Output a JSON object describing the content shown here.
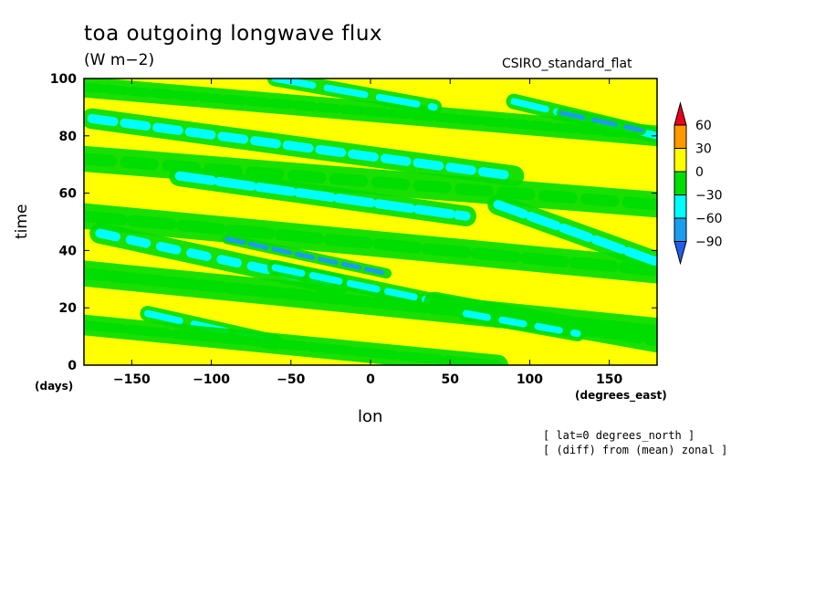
{
  "chart_data": {
    "type": "heatmap",
    "title": "toa outgoing longwave flux",
    "units": "(W m−2)",
    "model": "CSIRO_standard_flat",
    "xlabel": "lon",
    "ylabel": "time",
    "x_unit": "(degrees_east)",
    "y_unit": "(days)",
    "xlim": [
      -180,
      180
    ],
    "ylim": [
      0,
      100
    ],
    "x_ticks": [
      -150,
      -100,
      -50,
      0,
      50,
      100,
      150
    ],
    "y_ticks": [
      0,
      20,
      40,
      60,
      80,
      100
    ],
    "colorbar": {
      "levels": [
        60,
        30,
        0,
        -30,
        -60,
        -90
      ],
      "labels": [
        "60",
        "30",
        "0",
        "−30",
        "−60",
        "−90"
      ],
      "colors": [
        "#e8001c",
        "#ff9900",
        "#ffff00",
        "#00dd00",
        "#00ffff",
        "#1b9dee",
        "#1f5fe8"
      ]
    },
    "background_level_color": "#ffff00",
    "bands": [
      {
        "x0": -180,
        "y0": 97,
        "x1": 180,
        "y1": 80,
        "width": 4,
        "level": "-30"
      },
      {
        "x0": -175,
        "y0": 86,
        "x1": 90,
        "y1": 66,
        "width": 4,
        "level": "-60"
      },
      {
        "x0": -180,
        "y0": 72,
        "x1": 180,
        "y1": 56,
        "width": 5,
        "level": "-30"
      },
      {
        "x0": -120,
        "y0": 66,
        "x1": 60,
        "y1": 52,
        "width": 4,
        "level": "-60"
      },
      {
        "x0": -180,
        "y0": 52,
        "x1": 180,
        "y1": 33,
        "width": 5,
        "level": "-30"
      },
      {
        "x0": -170,
        "y0": 46,
        "x1": -20,
        "y1": 28,
        "width": 4,
        "level": "-60"
      },
      {
        "x0": -180,
        "y0": 32,
        "x1": 180,
        "y1": 12,
        "width": 5,
        "level": "-30"
      },
      {
        "x0": -60,
        "y0": 34,
        "x1": 60,
        "y1": 20,
        "width": 3,
        "level": "-60"
      },
      {
        "x0": -140,
        "y0": 18,
        "x1": -60,
        "y1": 8,
        "width": 3,
        "level": "-60"
      },
      {
        "x0": -180,
        "y0": 14,
        "x1": 80,
        "y1": 0,
        "width": 4,
        "level": "-30"
      },
      {
        "x0": 40,
        "y0": 22,
        "x1": 180,
        "y1": 8,
        "width": 4,
        "level": "-30"
      },
      {
        "x0": 60,
        "y0": 18,
        "x1": 130,
        "y1": 11,
        "width": 3,
        "level": "-60"
      },
      {
        "x0": 80,
        "y0": 56,
        "x1": 180,
        "y1": 36,
        "width": 4,
        "level": "-60"
      },
      {
        "x0": 90,
        "y0": 92,
        "x1": 180,
        "y1": 80,
        "width": 3,
        "level": "-60"
      },
      {
        "x0": -60,
        "y0": 100,
        "x1": 40,
        "y1": 90,
        "width": 3,
        "level": "-60"
      },
      {
        "x0": -90,
        "y0": 44,
        "x1": 10,
        "y1": 32,
        "width": 2,
        "level": "-90"
      },
      {
        "x0": 120,
        "y0": 88,
        "x1": 170,
        "y1": 82,
        "width": 2,
        "level": "-90"
      }
    ]
  }
}
